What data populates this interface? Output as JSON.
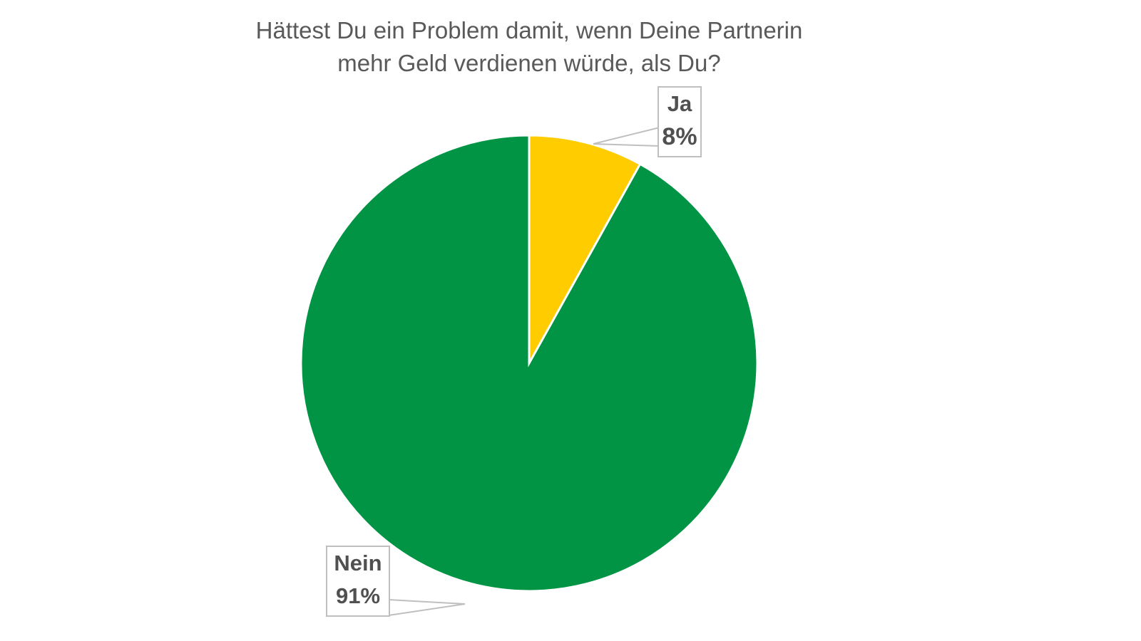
{
  "title_line1": "Hättest Du ein Problem damit, wenn Deine Partnerin",
  "title_line2": "mehr Geld verdienen würde, als Du?",
  "colors": {
    "ja": "#FFCC00",
    "nein": "#009444",
    "title": "#595959",
    "label_border": "#BFBFBF"
  },
  "labels": {
    "ja": {
      "name": "Ja",
      "value": "8%"
    },
    "nein": {
      "name": "Nein",
      "value": "91%"
    }
  },
  "chart_data": {
    "type": "pie",
    "title": "Hättest Du ein Problem damit, wenn Deine Partnerin mehr Geld verdienen würde, als Du?",
    "categories": [
      "Ja",
      "Nein"
    ],
    "values": [
      8,
      91
    ],
    "unit": "%",
    "colors": [
      "#FFCC00",
      "#009444"
    ],
    "start_angle": "12 o'clock, clockwise",
    "legend": "none (data callout labels)"
  }
}
